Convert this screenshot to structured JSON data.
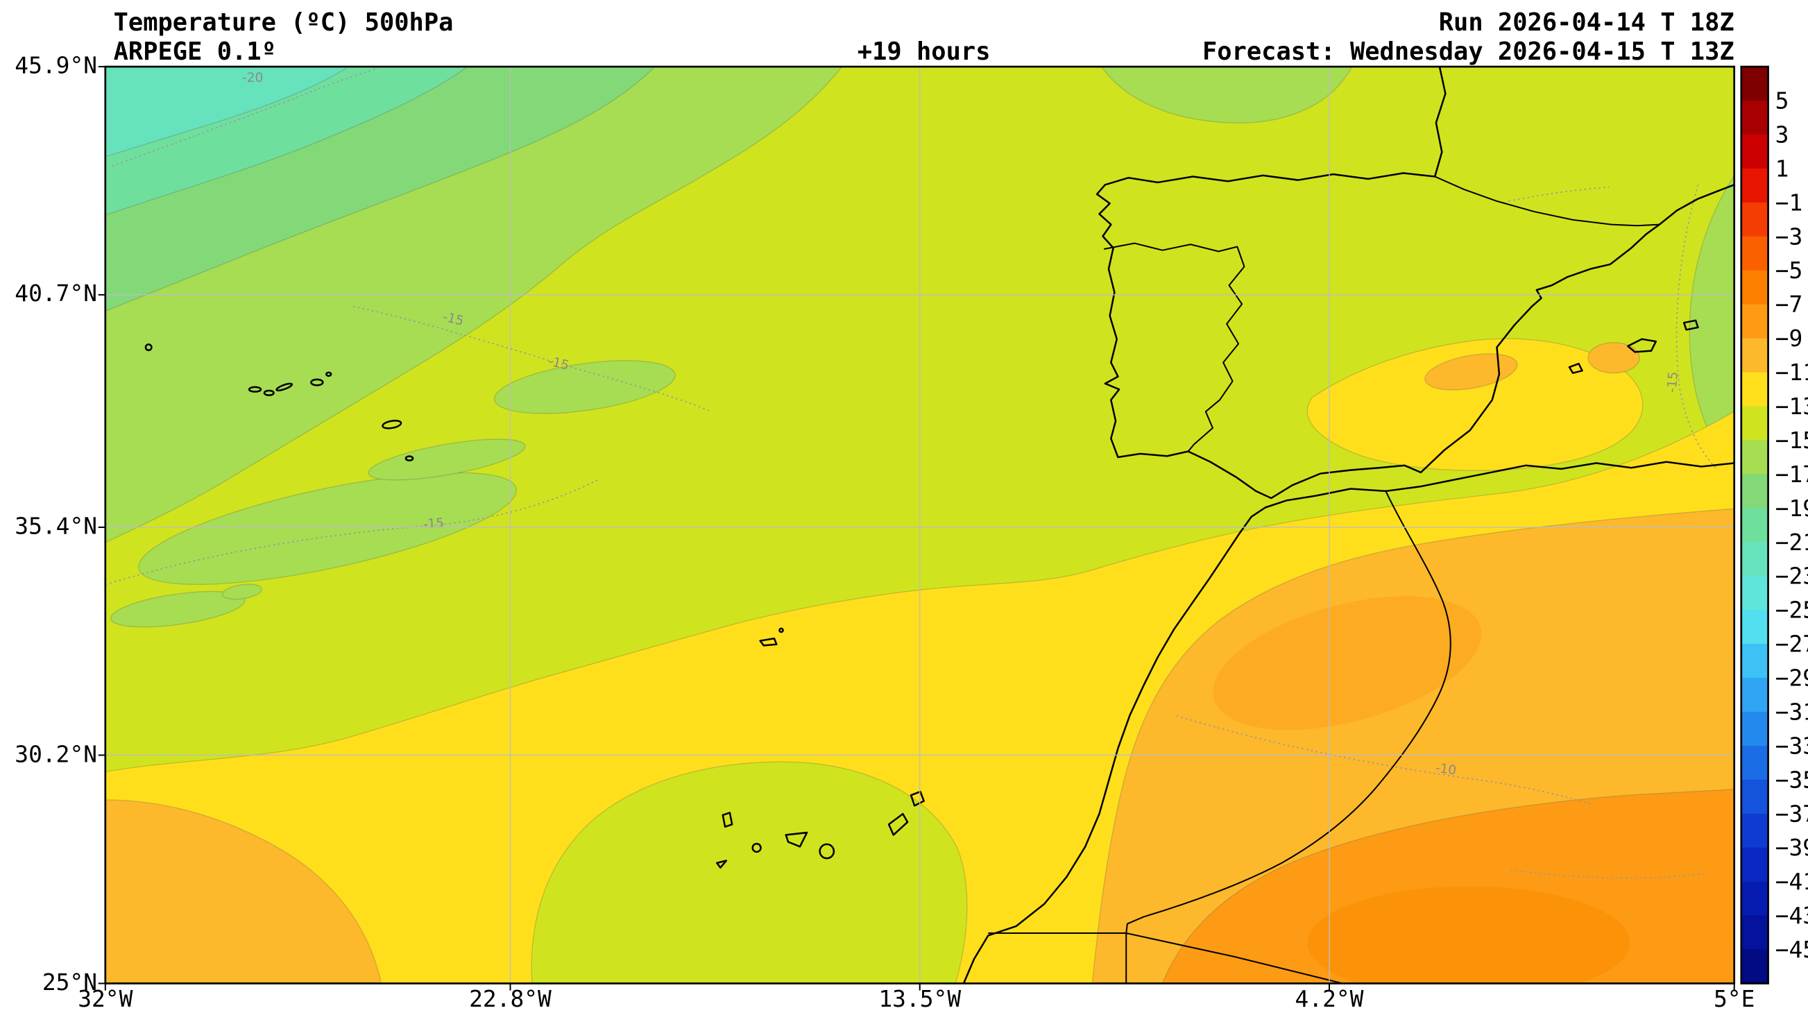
{
  "header": {
    "title": "Temperature (ºC) 500hPa",
    "model": "ARPEGE 0.1º",
    "lead_time": "+19 hours",
    "run": "Run 2026-04-14 T 18Z",
    "forecast": "Forecast: Wednesday 2026-04-15 T 13Z"
  },
  "axes": {
    "y_ticks": [
      "45.9°N",
      "40.7°N",
      "35.4°N",
      "30.2°N",
      "25°N"
    ],
    "x_ticks": [
      "32°W",
      "22.8°W",
      "13.5°W",
      "4.2°W",
      "5°E"
    ]
  },
  "colorbar": {
    "labels": [
      "5",
      "3",
      "1",
      "−1",
      "−3",
      "−5",
      "−7",
      "−9",
      "−11",
      "−13",
      "−15",
      "−17",
      "−19",
      "−21",
      "−23",
      "−25",
      "−27",
      "−29",
      "−31",
      "−33",
      "−35",
      "−37",
      "−39",
      "−41",
      "−43",
      "−45"
    ],
    "cell_colors": [
      "#7e0000",
      "#a80000",
      "#cc0000",
      "#e81500",
      "#f43d00",
      "#fa6000",
      "#fd7f00",
      "#fd9b14",
      "#fdb82b",
      "#ffdf1c",
      "#cfe41e",
      "#a6dd52",
      "#83d977",
      "#6fdf9e",
      "#66e2bd",
      "#5fe5da",
      "#52dff0",
      "#3ec1f5",
      "#2fa5f3",
      "#2489ee",
      "#1b6de6",
      "#1453dc",
      "#0e3cd0",
      "#0929c2",
      "#061bb0",
      "#04129c",
      "#020a84"
    ]
  },
  "map": {
    "contour_labels": [
      {
        "text": "-20"
      },
      {
        "text": "-15"
      },
      {
        "text": "-15"
      },
      {
        "text": "-15"
      },
      {
        "text": "-15"
      },
      {
        "text": "-10"
      }
    ],
    "band_colors": {
      "base_13_15": "#cfe41e",
      "green_15_17": "#a6dd52",
      "green_17_19": "#83d977",
      "teal_19_21": "#6fdf9e",
      "aqua_21_23": "#66e2bd",
      "yellow_11_13": "#ffdf1c",
      "orange_9_11": "#fdb82b",
      "orange_7_9": "#fd9b14",
      "orange_5_7": "#fb8c00"
    },
    "field_notes": {
      "northwest_atlantic": "-15 to -23 (green to aqua)",
      "center_iberia": "-13 to -15 (yellow-green)",
      "south_band": "-11 to -13 (yellow)",
      "morocco_interior": "-9 to -11 (orange)",
      "sahara_southeast": "-7 to -9 (deep orange)"
    }
  }
}
